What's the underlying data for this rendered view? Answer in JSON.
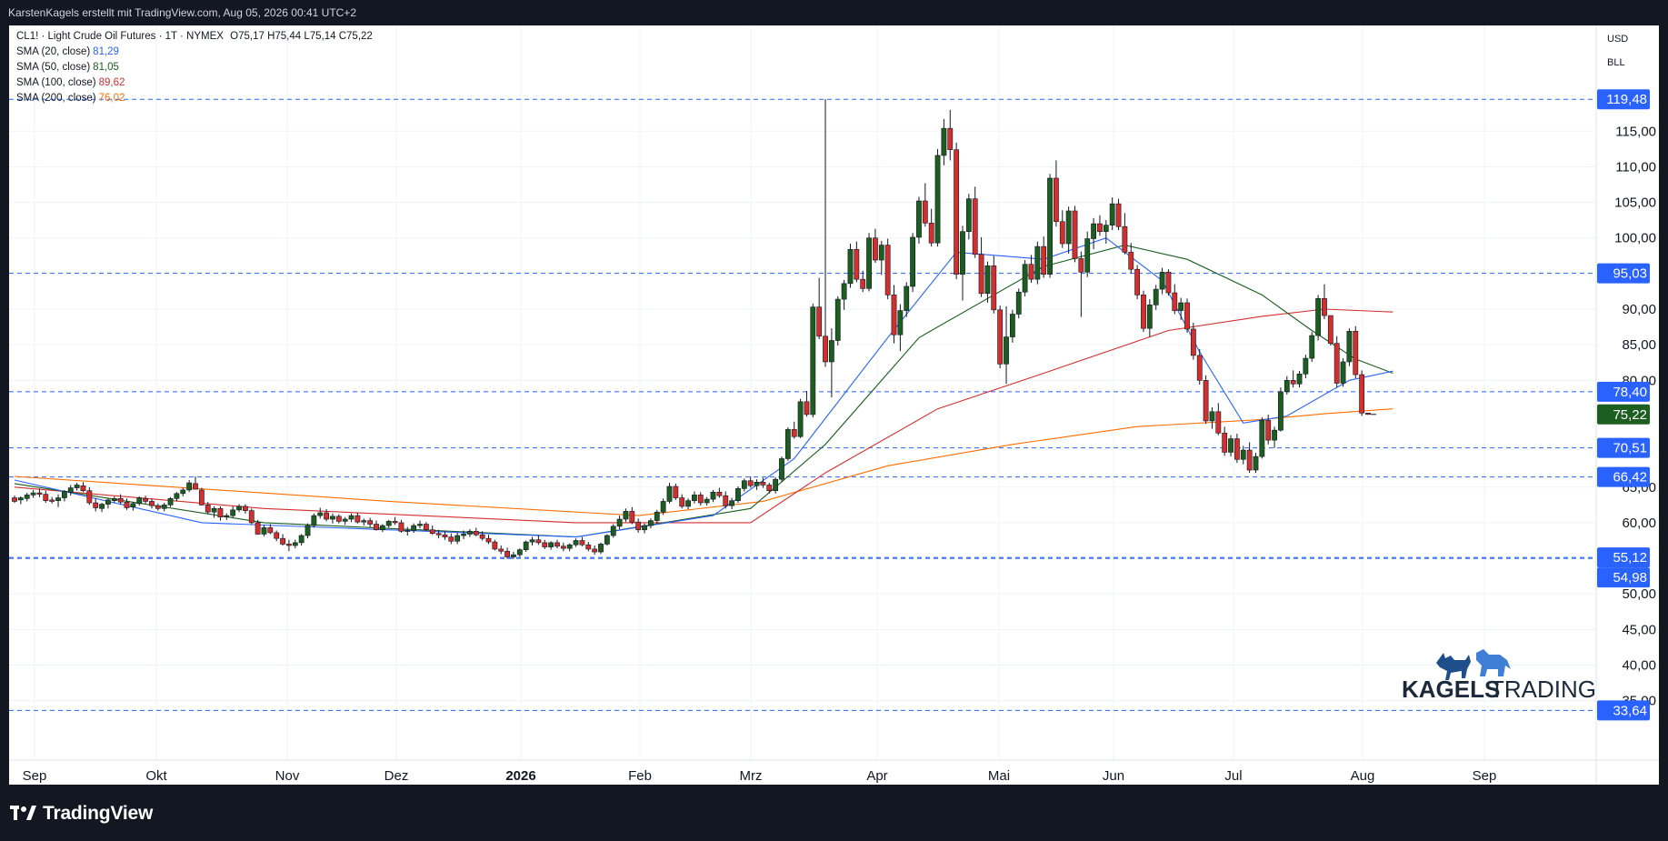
{
  "header": {
    "title": "KarstenKagels erstellt mit TradingView.com, Aug 05, 2026 00:41 UTC+2"
  },
  "legend": {
    "symbol_line": "CL1! · Light Crude Oil Futures · 1T · NYMEX",
    "ohlc": "O75,17  H75,44  L75,14  C75,22",
    "sma": [
      {
        "label": "SMA (20, close)",
        "value": "81,29",
        "color": "#2962ff"
      },
      {
        "label": "SMA (50, close)",
        "value": "81,05",
        "color": "#1b5e20"
      },
      {
        "label": "SMA (100, close)",
        "value": "89,62",
        "color": "#d32f2f"
      },
      {
        "label": "SMA (200, close)",
        "value": "76,02",
        "color": "#ff6d00"
      }
    ]
  },
  "price_axis": {
    "currency": "USD",
    "unit": "BLL",
    "ticks": [
      "115,00",
      "110,00",
      "105,00",
      "100,00",
      "90,00",
      "85,00",
      "80,00",
      "65,00",
      "60,00",
      "50,00",
      "45,00",
      "40,00",
      "35,00"
    ],
    "current_price": "75,22"
  },
  "logo": {
    "brand_bold": "KAGELS",
    "brand_light": "TRADING"
  },
  "footer": {
    "brand": "TradingView"
  },
  "colors": {
    "up": "#26a69a",
    "up_body": "#1b5e20",
    "down": "#d32f2f",
    "hline": "#2962ff",
    "label_bg": "#2962ff",
    "current_bg": "#1b5e20"
  },
  "chart_data": {
    "type": "candlestick",
    "symbol": "CL1!",
    "name": "Light Crude Oil Futures",
    "interval": "1T",
    "exchange": "NYMEX",
    "y_range": [
      31,
      125
    ],
    "x_labels": [
      "Sep",
      "Okt",
      "Nov",
      "Dez",
      "2026",
      "Feb",
      "Mrz",
      "Apr",
      "Mai",
      "Jun",
      "Jul",
      "Aug",
      "Sep"
    ],
    "horizontal_levels": [
      "119,48",
      "95,03",
      "78,40",
      "70,51",
      "66,42",
      "55,12",
      "54,98",
      "33,64"
    ],
    "last_candle": {
      "open": 75.17,
      "high": 75.44,
      "low": 75.14,
      "close": 75.22
    },
    "candles_approx": [
      [
        63.5,
        63.8,
        62.8,
        63.0
      ],
      [
        63.2,
        63.7,
        62.6,
        63.5
      ],
      [
        63.4,
        64.2,
        63.0,
        63.9
      ],
      [
        63.9,
        64.6,
        63.5,
        64.2
      ],
      [
        64.2,
        64.8,
        63.6,
        64.0
      ],
      [
        64.0,
        64.5,
        62.8,
        63.1
      ],
      [
        63.2,
        63.6,
        62.7,
        63.0
      ],
      [
        63.1,
        64.0,
        62.2,
        63.5
      ],
      [
        63.5,
        64.6,
        63.0,
        64.4
      ],
      [
        64.3,
        65.3,
        63.8,
        64.9
      ],
      [
        64.9,
        65.6,
        64.5,
        65.3
      ],
      [
        65.2,
        65.7,
        64.3,
        64.5
      ],
      [
        64.5,
        65.0,
        62.5,
        62.8
      ],
      [
        62.8,
        63.4,
        61.6,
        62.1
      ],
      [
        62.0,
        62.8,
        61.5,
        62.6
      ],
      [
        62.6,
        63.5,
        62.0,
        63.2
      ],
      [
        63.1,
        63.7,
        62.8,
        63.4
      ],
      [
        63.4,
        64.0,
        62.6,
        62.9
      ],
      [
        62.9,
        63.4,
        61.8,
        62.1
      ],
      [
        62.2,
        62.9,
        61.7,
        62.7
      ],
      [
        62.7,
        63.7,
        62.4,
        63.5
      ],
      [
        63.4,
        63.8,
        62.7,
        63.0
      ],
      [
        63.0,
        63.4,
        62.0,
        62.4
      ],
      [
        62.4,
        62.7,
        61.7,
        62.0
      ],
      [
        62.0,
        62.8,
        61.6,
        62.5
      ],
      [
        62.5,
        63.6,
        62.2,
        63.4
      ],
      [
        63.4,
        64.3,
        63.0,
        64.1
      ],
      [
        64.1,
        64.9,
        63.7,
        64.6
      ],
      [
        64.6,
        66.0,
        64.3,
        65.6
      ],
      [
        65.5,
        66.5,
        64.9,
        64.7
      ],
      [
        64.6,
        64.9,
        62.4,
        62.5
      ],
      [
        62.5,
        62.9,
        61.2,
        61.5
      ],
      [
        61.5,
        62.3,
        60.7,
        62.0
      ],
      [
        62.0,
        62.3,
        60.3,
        60.8
      ],
      [
        60.8,
        61.3,
        60.4,
        61.0
      ],
      [
        61.0,
        62.3,
        60.7,
        61.8
      ],
      [
        61.8,
        62.6,
        61.5,
        62.3
      ],
      [
        62.3,
        62.6,
        61.3,
        61.7
      ],
      [
        61.7,
        62.0,
        59.8,
        60.0
      ],
      [
        60.0,
        60.4,
        58.3,
        58.4
      ],
      [
        58.4,
        59.7,
        58.1,
        59.3
      ],
      [
        59.3,
        59.8,
        58.4,
        58.6
      ],
      [
        58.6,
        58.9,
        57.4,
        57.8
      ],
      [
        57.8,
        58.4,
        56.8,
        57.0
      ],
      [
        57.0,
        57.6,
        56.0,
        56.8
      ],
      [
        56.8,
        57.6,
        56.4,
        57.2
      ],
      [
        57.2,
        58.4,
        56.8,
        58.2
      ],
      [
        58.2,
        59.9,
        57.8,
        59.6
      ],
      [
        59.6,
        61.3,
        59.3,
        61.0
      ],
      [
        61.0,
        62.1,
        60.6,
        61.4
      ],
      [
        61.4,
        61.9,
        60.2,
        60.5
      ],
      [
        60.5,
        61.3,
        59.9,
        60.9
      ],
      [
        60.9,
        61.2,
        59.9,
        60.2
      ],
      [
        60.2,
        60.8,
        59.7,
        60.5
      ],
      [
        60.5,
        61.3,
        60.1,
        61.0
      ],
      [
        61.0,
        61.4,
        59.9,
        60.1
      ],
      [
        60.1,
        60.6,
        59.6,
        60.3
      ],
      [
        60.3,
        60.7,
        59.4,
        59.8
      ],
      [
        59.8,
        60.3,
        58.9,
        59.0
      ],
      [
        59.0,
        59.8,
        58.7,
        59.6
      ],
      [
        59.6,
        60.4,
        59.3,
        60.2
      ],
      [
        60.2,
        60.8,
        59.7,
        60.0
      ],
      [
        60.0,
        60.4,
        58.6,
        58.8
      ],
      [
        58.8,
        59.4,
        58.2,
        58.9
      ],
      [
        58.9,
        59.9,
        58.6,
        59.6
      ],
      [
        59.6,
        60.3,
        59.2,
        59.8
      ],
      [
        59.8,
        60.1,
        58.8,
        59.0
      ],
      [
        59.0,
        59.6,
        58.3,
        58.5
      ],
      [
        58.5,
        59.0,
        57.8,
        58.3
      ],
      [
        58.3,
        58.8,
        57.6,
        58.0
      ],
      [
        58.0,
        58.5,
        57.0,
        57.4
      ],
      [
        57.4,
        58.6,
        57.0,
        58.2
      ],
      [
        58.2,
        58.9,
        57.7,
        58.4
      ],
      [
        58.4,
        59.1,
        58.0,
        58.8
      ],
      [
        58.8,
        59.3,
        58.1,
        58.3
      ],
      [
        58.3,
        58.8,
        57.5,
        57.8
      ],
      [
        57.8,
        58.3,
        57.0,
        57.3
      ],
      [
        57.3,
        57.6,
        56.1,
        56.3
      ],
      [
        56.3,
        56.8,
        55.6,
        56.0
      ],
      [
        56.0,
        56.5,
        54.9,
        55.2
      ],
      [
        55.2,
        55.9,
        54.9,
        55.5
      ],
      [
        55.5,
        56.4,
        55.2,
        56.2
      ],
      [
        56.2,
        57.5,
        55.9,
        57.3
      ],
      [
        57.3,
        58.0,
        56.8,
        57.6
      ],
      [
        57.6,
        58.2,
        56.9,
        57.2
      ],
      [
        57.2,
        57.6,
        56.3,
        56.6
      ],
      [
        56.6,
        57.4,
        56.2,
        57.2
      ],
      [
        57.2,
        57.6,
        56.4,
        56.7
      ],
      [
        56.7,
        57.2,
        56.0,
        56.4
      ],
      [
        56.4,
        57.1,
        56.0,
        56.9
      ],
      [
        56.9,
        57.8,
        56.6,
        57.5
      ],
      [
        57.5,
        58.0,
        56.7,
        56.9
      ],
      [
        56.9,
        57.3,
        56.0,
        56.3
      ],
      [
        56.3,
        56.8,
        55.5,
        55.9
      ],
      [
        55.9,
        57.2,
        55.6,
        57.0
      ],
      [
        57.0,
        58.4,
        56.8,
        58.2
      ],
      [
        58.2,
        59.8,
        57.9,
        59.5
      ],
      [
        59.5,
        61.0,
        59.1,
        60.5
      ],
      [
        60.5,
        62.0,
        60.1,
        61.6
      ],
      [
        61.6,
        62.2,
        59.8,
        60.1
      ],
      [
        60.1,
        60.6,
        58.6,
        59.0
      ],
      [
        59.0,
        59.9,
        58.5,
        59.6
      ],
      [
        59.6,
        60.6,
        59.2,
        60.3
      ],
      [
        60.3,
        61.8,
        59.9,
        61.5
      ],
      [
        61.5,
        63.4,
        61.1,
        63.0
      ],
      [
        63.0,
        65.6,
        62.7,
        65.1
      ],
      [
        65.1,
        65.5,
        63.2,
        63.5
      ],
      [
        63.5,
        64.0,
        62.0,
        62.3
      ],
      [
        62.3,
        63.4,
        61.9,
        63.1
      ],
      [
        63.1,
        64.4,
        62.7,
        63.9
      ],
      [
        63.9,
        64.3,
        62.4,
        62.8
      ],
      [
        62.8,
        63.6,
        62.4,
        63.3
      ],
      [
        63.3,
        64.6,
        62.9,
        64.3
      ],
      [
        64.3,
        64.9,
        63.5,
        63.8
      ],
      [
        63.8,
        64.4,
        62.0,
        62.4
      ],
      [
        62.4,
        63.5,
        61.9,
        63.1
      ],
      [
        63.1,
        65.1,
        62.8,
        64.8
      ],
      [
        64.8,
        66.2,
        64.4,
        65.9
      ],
      [
        65.9,
        66.5,
        64.9,
        65.2
      ],
      [
        65.2,
        66.1,
        64.6,
        65.7
      ],
      [
        65.7,
        66.3,
        64.9,
        65.3
      ],
      [
        65.3,
        65.6,
        64.1,
        64.5
      ],
      [
        64.5,
        66.4,
        64.1,
        66.1
      ],
      [
        66.1,
        69.3,
        65.8,
        69.0
      ],
      [
        69.0,
        73.4,
        68.7,
        73.1
      ],
      [
        73.1,
        74.2,
        71.8,
        72.1
      ],
      [
        72.1,
        77.4,
        71.9,
        77.0
      ],
      [
        77.0,
        78.5,
        74.9,
        75.2
      ],
      [
        75.2,
        90.8,
        74.8,
        90.3
      ],
      [
        90.3,
        94.4,
        85.8,
        86.2
      ],
      [
        86.2,
        119.5,
        81.9,
        82.6
      ],
      [
        82.6,
        87.3,
        77.6,
        85.6
      ],
      [
        85.6,
        91.8,
        84.9,
        91.4
      ],
      [
        91.4,
        94.1,
        89.9,
        93.6
      ],
      [
        93.6,
        99.2,
        93.0,
        98.4
      ],
      [
        98.4,
        99.5,
        93.8,
        94.2
      ],
      [
        94.2,
        95.4,
        92.4,
        92.9
      ],
      [
        92.9,
        100.7,
        92.5,
        100.0
      ],
      [
        100.0,
        101.3,
        96.5,
        96.9
      ],
      [
        96.9,
        99.6,
        94.8,
        99.0
      ],
      [
        99.0,
        99.9,
        91.4,
        92.0
      ],
      [
        92.0,
        93.4,
        85.2,
        86.4
      ],
      [
        86.4,
        90.7,
        84.1,
        89.8
      ],
      [
        89.8,
        93.8,
        88.9,
        93.2
      ],
      [
        93.2,
        100.7,
        92.4,
        100.1
      ],
      [
        100.1,
        105.8,
        99.2,
        105.2
      ],
      [
        105.2,
        107.7,
        101.6,
        102.1
      ],
      [
        102.1,
        104.1,
        98.8,
        99.3
      ],
      [
        99.3,
        112.5,
        98.8,
        111.6
      ],
      [
        111.6,
        116.7,
        110.2,
        115.4
      ],
      [
        115.4,
        118.0,
        110.9,
        112.4
      ],
      [
        112.4,
        113.4,
        94.2,
        94.9
      ],
      [
        94.9,
        101.7,
        91.2,
        100.9
      ],
      [
        100.9,
        106.2,
        99.8,
        105.5
      ],
      [
        105.5,
        107.2,
        97.2,
        97.7
      ],
      [
        97.7,
        100.1,
        91.7,
        92.2
      ],
      [
        92.2,
        96.7,
        90.9,
        96.1
      ],
      [
        96.1,
        97.5,
        89.4,
        89.9
      ],
      [
        89.9,
        90.5,
        81.7,
        82.3
      ],
      [
        82.3,
        90.4,
        79.5,
        86.1
      ],
      [
        86.1,
        89.9,
        85.3,
        89.3
      ],
      [
        89.3,
        92.9,
        88.7,
        92.4
      ],
      [
        92.4,
        96.9,
        91.8,
        96.3
      ],
      [
        96.3,
        97.6,
        93.7,
        94.2
      ],
      [
        94.2,
        99.5,
        93.5,
        98.8
      ],
      [
        98.8,
        100.2,
        94.4,
        94.9
      ],
      [
        94.9,
        109.0,
        94.4,
        108.4
      ],
      [
        108.4,
        110.9,
        101.6,
        102.3
      ],
      [
        102.3,
        103.9,
        98.6,
        99.2
      ],
      [
        99.2,
        104.4,
        97.8,
        103.8
      ],
      [
        103.8,
        104.5,
        96.6,
        97.1
      ],
      [
        97.1,
        98.1,
        88.9,
        95.2
      ],
      [
        95.2,
        100.9,
        94.5,
        99.9
      ],
      [
        99.9,
        102.8,
        98.4,
        102.0
      ],
      [
        102.0,
        103.2,
        100.3,
        100.9
      ],
      [
        100.9,
        102.5,
        99.2,
        101.8
      ],
      [
        101.8,
        105.7,
        101.1,
        104.8
      ],
      [
        104.8,
        105.5,
        101.1,
        101.6
      ],
      [
        101.6,
        103.5,
        97.7,
        98.0
      ],
      [
        98.0,
        99.3,
        95.0,
        95.6
      ],
      [
        95.6,
        96.2,
        91.4,
        92.0
      ],
      [
        92.0,
        92.6,
        86.8,
        87.3
      ],
      [
        87.3,
        91.4,
        86.1,
        90.6
      ],
      [
        90.6,
        93.4,
        89.9,
        92.8
      ],
      [
        92.8,
        95.8,
        92.1,
        95.2
      ],
      [
        95.2,
        95.6,
        91.9,
        92.3
      ],
      [
        92.3,
        93.5,
        89.3,
        89.8
      ],
      [
        89.8,
        91.6,
        88.5,
        90.9
      ],
      [
        90.9,
        91.5,
        86.7,
        87.2
      ],
      [
        87.2,
        88.1,
        82.9,
        83.5
      ],
      [
        83.5,
        84.4,
        79.4,
        80.0
      ],
      [
        80.0,
        80.7,
        73.9,
        74.3
      ],
      [
        74.3,
        76.2,
        73.2,
        75.6
      ],
      [
        75.6,
        76.8,
        72.3,
        72.6
      ],
      [
        72.6,
        73.5,
        69.4,
        69.9
      ],
      [
        69.9,
        72.3,
        69.3,
        71.8
      ],
      [
        71.8,
        72.5,
        68.4,
        68.9
      ],
      [
        68.9,
        70.8,
        68.2,
        70.2
      ],
      [
        70.2,
        71.3,
        67.0,
        67.4
      ],
      [
        67.4,
        69.8,
        67.0,
        69.3
      ],
      [
        69.3,
        74.8,
        69.0,
        74.4
      ],
      [
        74.4,
        75.2,
        71.0,
        71.6
      ],
      [
        71.6,
        73.5,
        70.5,
        73.0
      ],
      [
        73.0,
        79.0,
        72.8,
        78.4
      ],
      [
        78.4,
        80.6,
        78.0,
        80.0
      ],
      [
        80.0,
        81.4,
        79.0,
        79.5
      ],
      [
        79.5,
        81.3,
        79.0,
        80.9
      ],
      [
        80.9,
        83.6,
        80.3,
        83.1
      ],
      [
        83.1,
        86.8,
        82.6,
        86.3
      ],
      [
        86.3,
        92.0,
        85.6,
        91.5
      ],
      [
        91.5,
        93.5,
        88.6,
        89.1
      ],
      [
        89.1,
        85.5,
        84.9,
        85.2
      ],
      [
        85.2,
        86.2,
        79.0,
        79.6
      ],
      [
        79.6,
        83.1,
        79.1,
        82.6
      ],
      [
        82.6,
        87.3,
        82.0,
        86.9
      ],
      [
        86.9,
        87.6,
        80.3,
        80.8
      ],
      [
        80.8,
        81.4,
        75.0,
        75.4
      ],
      [
        75.4,
        75.44,
        75.14,
        75.22
      ]
    ],
    "sma_20": [
      [
        0,
        66
      ],
      [
        30,
        60
      ],
      [
        90,
        58
      ],
      [
        112,
        61
      ],
      [
        125,
        69
      ],
      [
        140,
        86
      ],
      [
        151,
        98
      ],
      [
        165,
        97
      ],
      [
        175,
        100
      ],
      [
        184,
        94
      ],
      [
        190,
        84
      ],
      [
        197,
        74
      ],
      [
        204,
        75
      ],
      [
        214,
        80
      ],
      [
        221,
        81.3
      ]
    ],
    "sma_50": [
      [
        0,
        65.5
      ],
      [
        40,
        60
      ],
      [
        90,
        58
      ],
      [
        118,
        62
      ],
      [
        130,
        71
      ],
      [
        145,
        86
      ],
      [
        165,
        96
      ],
      [
        178,
        99
      ],
      [
        188,
        97
      ],
      [
        200,
        92
      ],
      [
        208,
        87
      ],
      [
        215,
        83
      ],
      [
        221,
        81.0
      ]
    ],
    "sma_100": [
      [
        0,
        65
      ],
      [
        40,
        62
      ],
      [
        90,
        60
      ],
      [
        118,
        60
      ],
      [
        130,
        67
      ],
      [
        148,
        76
      ],
      [
        165,
        81
      ],
      [
        185,
        87
      ],
      [
        200,
        89
      ],
      [
        210,
        90
      ],
      [
        221,
        89.6
      ]
    ],
    "sma_200": [
      [
        0,
        66.5
      ],
      [
        60,
        63
      ],
      [
        100,
        61
      ],
      [
        120,
        63
      ],
      [
        140,
        68
      ],
      [
        160,
        71
      ],
      [
        180,
        73.5
      ],
      [
        200,
        74.5
      ],
      [
        210,
        75.3
      ],
      [
        221,
        76.0
      ]
    ]
  }
}
